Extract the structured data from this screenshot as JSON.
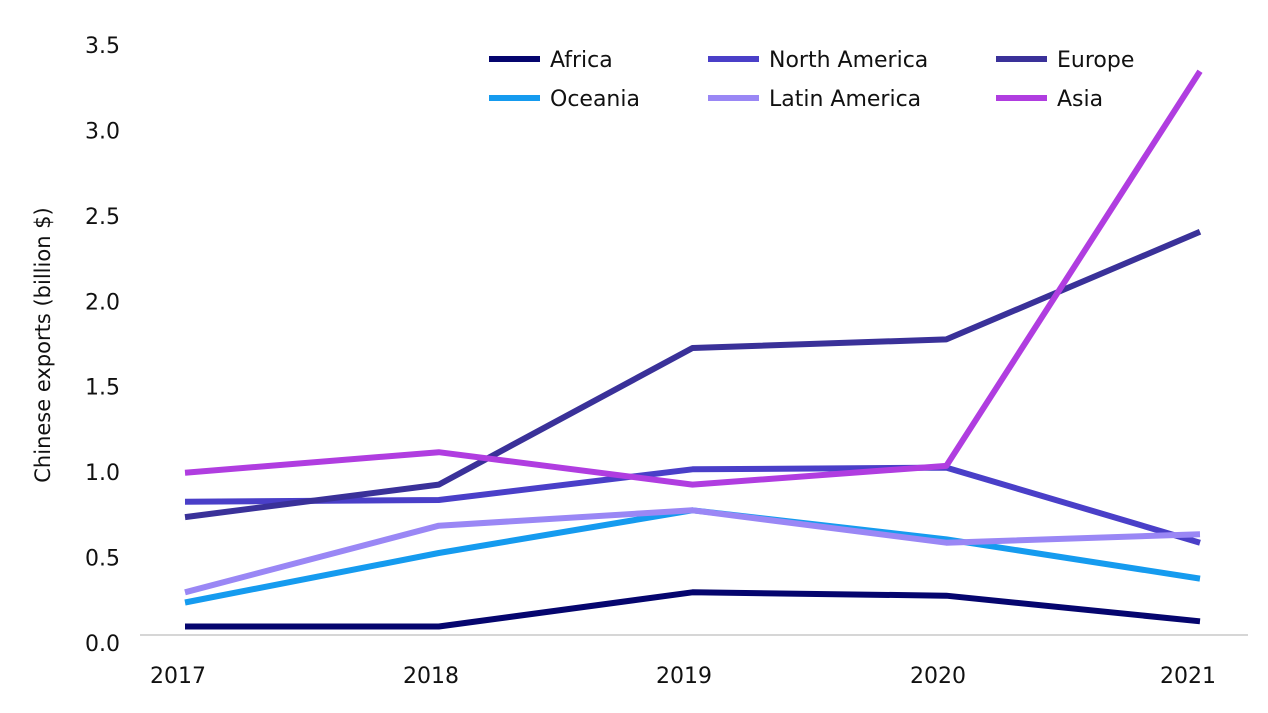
{
  "chart_data": {
    "type": "line",
    "title": "",
    "xlabel": "",
    "ylabel": "Chinese exports (billion $)",
    "x": [
      "2017",
      "2018",
      "2019",
      "2020",
      "2021"
    ],
    "ylim": [
      0,
      3.5
    ],
    "yticks": [
      "0.0",
      "0.5",
      "1.0",
      "1.5",
      "2.0",
      "2.5",
      "3.0",
      "3.5"
    ],
    "grid": false,
    "legend_position": "top-right",
    "series": [
      {
        "name": "Africa",
        "color": "#05056e",
        "values": [
          0.05,
          0.05,
          0.25,
          0.23,
          0.08
        ]
      },
      {
        "name": "North America",
        "color": "#4a3fc8",
        "values": [
          0.78,
          0.79,
          0.97,
          0.98,
          0.54
        ]
      },
      {
        "name": "Europe",
        "color": "#3a3199",
        "values": [
          0.69,
          0.88,
          1.68,
          1.73,
          2.36
        ]
      },
      {
        "name": "Oceania",
        "color": "#159bef",
        "values": [
          0.19,
          0.48,
          0.73,
          0.56,
          0.33
        ]
      },
      {
        "name": "Latin America",
        "color": "#9a87f5",
        "values": [
          0.25,
          0.64,
          0.73,
          0.54,
          0.59
        ]
      },
      {
        "name": "Asia",
        "color": "#b03de0",
        "values": [
          0.95,
          1.07,
          0.88,
          0.99,
          3.3
        ]
      }
    ]
  }
}
